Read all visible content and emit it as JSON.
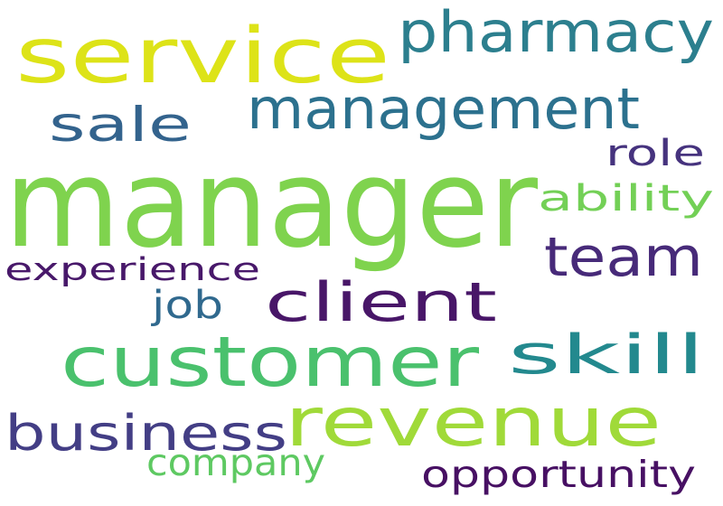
{
  "words": [
    {
      "text": "manager",
      "color": "#7fd34e"
    },
    {
      "text": "service",
      "color": "#dde318"
    },
    {
      "text": "pharmacy",
      "color": "#2c7f8e"
    },
    {
      "text": "management",
      "color": "#2c718e"
    },
    {
      "text": "sale",
      "color": "#33638d"
    },
    {
      "text": "role",
      "color": "#46337e"
    },
    {
      "text": "ability",
      "color": "#73d056"
    },
    {
      "text": "team",
      "color": "#472a79"
    },
    {
      "text": "experience",
      "color": "#48186a"
    },
    {
      "text": "client",
      "color": "#481668"
    },
    {
      "text": "job",
      "color": "#30698e"
    },
    {
      "text": "customer",
      "color": "#4ac16d"
    },
    {
      "text": "skill",
      "color": "#23898e"
    },
    {
      "text": "business",
      "color": "#433e85"
    },
    {
      "text": "revenue",
      "color": "#a0da39"
    },
    {
      "text": "company",
      "color": "#5ec962"
    },
    {
      "text": "opportunity",
      "color": "#471063"
    }
  ]
}
